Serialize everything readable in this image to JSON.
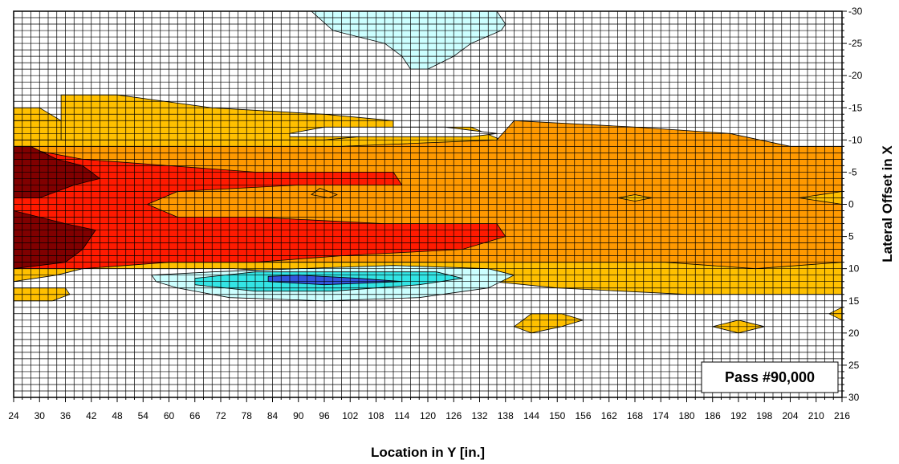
{
  "chart_data": {
    "type": "contour",
    "xlabel": "Location in Y [in.]",
    "ylabel": "Lateral Offset in X",
    "xlim": [
      24,
      216
    ],
    "ylim": [
      -30,
      30
    ],
    "x_ticks": [
      "24",
      "30",
      "36",
      "42",
      "48",
      "54",
      "60",
      "66",
      "72",
      "78",
      "84",
      "90",
      "96",
      "102",
      "108",
      "114",
      "120",
      "126",
      "132",
      "138",
      "144",
      "150",
      "156",
      "162",
      "168",
      "174",
      "180",
      "186",
      "192",
      "198",
      "204",
      "210",
      "216"
    ],
    "y_ticks": [
      "-30",
      "-25",
      "-20",
      "-15",
      "-10",
      "-5",
      "0",
      "5",
      "10",
      "15",
      "20",
      "25",
      "30"
    ],
    "annotation": "Pass #90,000",
    "grid": true,
    "colors": {
      "darkred": "#800000",
      "red": "#ff1a00",
      "orange": "#ff9900",
      "gold": "#ffc000",
      "white": "#ffffff",
      "lightcyan": "#ccffff",
      "cyan": "#33e5e5",
      "blue": "#3355dd"
    },
    "regions": [
      {
        "level": "gold",
        "points": [
          [
            24,
            -15
          ],
          [
            30,
            -15
          ],
          [
            35,
            -13
          ],
          [
            45,
            -12
          ],
          [
            58,
            -13
          ],
          [
            70,
            -13
          ],
          [
            90,
            -13
          ],
          [
            110,
            -12
          ],
          [
            130,
            -12
          ],
          [
            137,
            -10
          ],
          [
            150,
            -10
          ],
          [
            170,
            -8
          ],
          [
            190,
            -7
          ],
          [
            205,
            -6
          ],
          [
            216,
            -6
          ],
          [
            216,
            14
          ],
          [
            180,
            14
          ],
          [
            150,
            13
          ],
          [
            135,
            12
          ],
          [
            100,
            11
          ],
          [
            75,
            10
          ],
          [
            55,
            10
          ],
          [
            40,
            10
          ],
          [
            34,
            11
          ],
          [
            24,
            12
          ]
        ]
      },
      {
        "level": "gold",
        "points": [
          [
            24,
            13
          ],
          [
            36,
            13
          ],
          [
            37,
            14
          ],
          [
            33,
            15
          ],
          [
            24,
            15
          ]
        ]
      },
      {
        "level": "gold",
        "points": [
          [
            24,
            -13
          ],
          [
            36,
            -13
          ],
          [
            36,
            -10
          ],
          [
            24,
            -10
          ]
        ]
      },
      {
        "level": "gold",
        "points": [
          [
            140,
            19
          ],
          [
            144,
            20
          ],
          [
            151,
            19
          ],
          [
            156,
            18
          ],
          [
            151,
            17
          ],
          [
            144,
            17
          ]
        ]
      },
      {
        "level": "gold",
        "points": [
          [
            186,
            19
          ],
          [
            192,
            20
          ],
          [
            198,
            19
          ],
          [
            192,
            18
          ]
        ]
      },
      {
        "level": "gold",
        "points": [
          [
            213,
            17
          ],
          [
            216,
            18
          ],
          [
            216,
            16
          ]
        ]
      },
      {
        "level": "gold",
        "points": [
          [
            35,
            -17
          ],
          [
            48,
            -17
          ],
          [
            70,
            -15
          ],
          [
            96,
            -14
          ],
          [
            112,
            -13
          ],
          [
            112,
            -11
          ],
          [
            96,
            -10
          ],
          [
            70,
            -10
          ],
          [
            48,
            -10
          ],
          [
            35,
            -10
          ]
        ]
      },
      {
        "level": "white",
        "points": [
          [
            88,
            -10.5
          ],
          [
            130,
            -10.5
          ],
          [
            136,
            -11
          ],
          [
            124,
            -12
          ],
          [
            96,
            -12
          ],
          [
            88,
            -11
          ]
        ]
      },
      {
        "level": "orange",
        "points": [
          [
            24,
            -9
          ],
          [
            46,
            -9
          ],
          [
            80,
            -9
          ],
          [
            100,
            -9
          ],
          [
            136,
            -10
          ],
          [
            140,
            -13
          ],
          [
            168,
            -12
          ],
          [
            190,
            -11
          ],
          [
            204,
            -9
          ],
          [
            216,
            -9
          ],
          [
            216,
            -2
          ],
          [
            206,
            -1
          ],
          [
            216,
            0
          ],
          [
            216,
            9
          ],
          [
            196,
            10
          ],
          [
            175,
            9
          ],
          [
            130,
            9
          ],
          [
            100,
            9
          ],
          [
            80,
            9
          ],
          [
            60,
            9
          ],
          [
            40,
            9.5
          ],
          [
            24,
            10
          ]
        ]
      },
      {
        "level": "red",
        "points": [
          [
            24,
            10
          ],
          [
            40,
            10
          ],
          [
            60,
            9
          ],
          [
            80,
            9
          ],
          [
            100,
            8
          ],
          [
            128,
            7
          ],
          [
            138,
            5
          ],
          [
            136,
            3
          ],
          [
            110,
            3
          ],
          [
            80,
            2
          ],
          [
            62,
            2
          ],
          [
            55,
            0
          ],
          [
            62,
            -2
          ],
          [
            90,
            -3
          ],
          [
            114,
            -3
          ],
          [
            112,
            -5
          ],
          [
            80,
            -5
          ],
          [
            60,
            -6
          ],
          [
            40,
            -7
          ],
          [
            24,
            -9
          ]
        ]
      },
      {
        "level": "orange",
        "points": [
          [
            97,
            -1
          ],
          [
            93,
            -1.5
          ],
          [
            95,
            -2.5
          ],
          [
            99,
            -1.5
          ]
        ]
      },
      {
        "level": "darkred",
        "points": [
          [
            24,
            10
          ],
          [
            36,
            9
          ],
          [
            40,
            7
          ],
          [
            43,
            4
          ],
          [
            36,
            3
          ],
          [
            30,
            2
          ],
          [
            24,
            1
          ]
        ]
      },
      {
        "level": "darkred",
        "points": [
          [
            24,
            -1
          ],
          [
            30,
            -1
          ],
          [
            38,
            -3
          ],
          [
            44,
            -4
          ],
          [
            40,
            -6
          ],
          [
            34,
            -7
          ],
          [
            28,
            -9
          ],
          [
            24,
            -9
          ]
        ]
      },
      {
        "level": "gold",
        "points": [
          [
            164,
            -1
          ],
          [
            168,
            -0.5
          ],
          [
            172,
            -1
          ],
          [
            168,
            -1.5
          ]
        ]
      },
      {
        "level": "lightcyan",
        "points": [
          [
            62,
            13
          ],
          [
            74,
            14.5
          ],
          [
            96,
            15
          ],
          [
            118,
            14.5
          ],
          [
            134,
            13
          ],
          [
            140,
            11
          ],
          [
            134,
            10
          ],
          [
            112,
            9.5
          ],
          [
            90,
            10
          ],
          [
            70,
            10.5
          ],
          [
            56,
            11
          ],
          [
            57,
            12
          ]
        ]
      },
      {
        "level": "cyan",
        "points": [
          [
            66,
            12.5
          ],
          [
            80,
            13.5
          ],
          [
            98,
            13.5
          ],
          [
            118,
            12.5
          ],
          [
            128,
            11.5
          ],
          [
            122,
            10.5
          ],
          [
            100,
            10.5
          ],
          [
            80,
            10.5
          ],
          [
            66,
            11.5
          ]
        ]
      },
      {
        "level": "blue",
        "points": [
          [
            83,
            12
          ],
          [
            96,
            12.5
          ],
          [
            114,
            12
          ],
          [
            104,
            11.5
          ],
          [
            90,
            11
          ],
          [
            83,
            11.2
          ]
        ]
      },
      {
        "level": "lightcyan",
        "points": [
          [
            93,
            -30
          ],
          [
            98,
            -27
          ],
          [
            110,
            -25
          ],
          [
            114,
            -23
          ],
          [
            116,
            -21
          ],
          [
            120,
            -21
          ],
          [
            126,
            -23
          ],
          [
            130,
            -25
          ],
          [
            137,
            -27
          ],
          [
            138,
            -28
          ],
          [
            136,
            -30
          ]
        ]
      }
    ]
  }
}
